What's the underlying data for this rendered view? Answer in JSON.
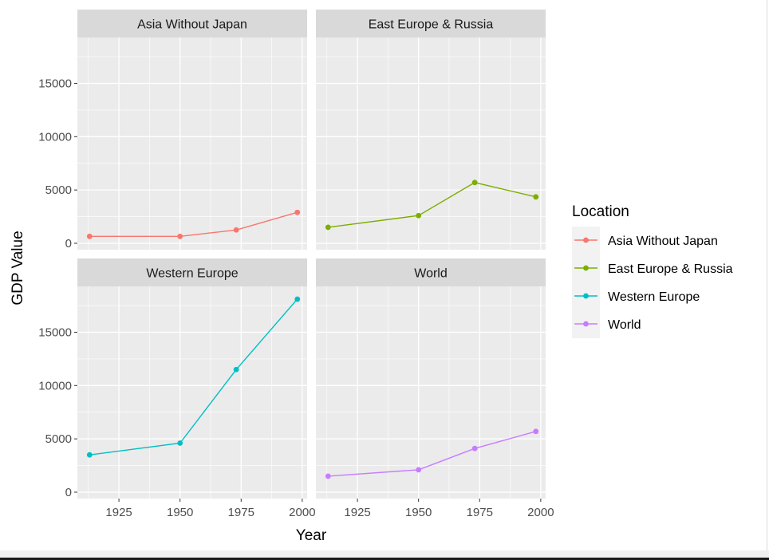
{
  "chart_data": {
    "type": "line",
    "facets": [
      "Asia Without Japan",
      "East Europe & Russia",
      "Western Europe",
      "World"
    ],
    "xlabel": "Year",
    "ylabel": "GDP Value",
    "xlim": [
      1908,
      2002
    ],
    "ylim": [
      -600,
      19300
    ],
    "x_ticks": [
      1925,
      1950,
      1975,
      2000
    ],
    "y_ticks": [
      0,
      5000,
      10000,
      15000
    ],
    "legend": {
      "title": "Location",
      "placement": "right",
      "entries": [
        "Asia Without Japan",
        "East Europe & Russia",
        "Western Europe",
        "World"
      ]
    },
    "series": [
      {
        "name": "Asia Without Japan",
        "color": "#F8766D",
        "x": [
          1913,
          1950,
          1973,
          1998
        ],
        "values": [
          650,
          650,
          1250,
          2900
        ]
      },
      {
        "name": "East Europe & Russia",
        "color": "#7CAE00",
        "x": [
          1913,
          1950,
          1973,
          1998
        ],
        "values": [
          1500,
          2600,
          5700,
          4350
        ]
      },
      {
        "name": "Western Europe",
        "color": "#00BFC4",
        "x": [
          1913,
          1950,
          1973,
          1998
        ],
        "values": [
          3500,
          4600,
          11500,
          18100
        ]
      },
      {
        "name": "World",
        "color": "#C77CFF",
        "x": [
          1913,
          1950,
          1973,
          1998
        ],
        "values": [
          1500,
          2100,
          4100,
          5700
        ]
      }
    ]
  }
}
